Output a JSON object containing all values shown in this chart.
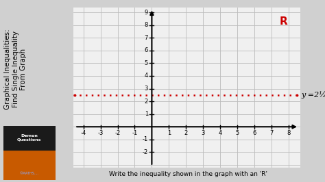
{
  "title_text": "Graphical Inequalities:\nFind Single Inequality\nFrom Graph",
  "bottom_text": "Write the inequality shown in the graph with an 'R'",
  "xmin": -4.5,
  "xmax": 8.5,
  "ymin": -3,
  "ymax": 9,
  "xlim_display": [
    -4,
    8
  ],
  "ylim_display": [
    -3,
    9
  ],
  "xticks": [
    -4,
    -3,
    -2,
    -1,
    1,
    2,
    3,
    4,
    5,
    6,
    7,
    8
  ],
  "yticks": [
    -2,
    -1,
    1,
    2,
    3,
    4,
    5,
    6,
    7,
    8,
    9
  ],
  "xticks_grid": [
    -4,
    -3,
    -2,
    -1,
    0,
    1,
    2,
    3,
    4,
    5,
    6,
    7,
    8
  ],
  "yticks_grid": [
    -3,
    -2,
    -1,
    0,
    1,
    2,
    3,
    4,
    5,
    6,
    7,
    8,
    9
  ],
  "dashed_line_y": 2.5,
  "line_color": "#cc0000",
  "line_label": "y =2½",
  "region_label": "R",
  "region_label_color": "#cc0000",
  "background_color": "#d0d0d0",
  "plot_bg_color": "#f0f0f0",
  "grid_color": "#bbbbbb",
  "axis_color": "#000000",
  "title_bg": "#d0d0d0"
}
